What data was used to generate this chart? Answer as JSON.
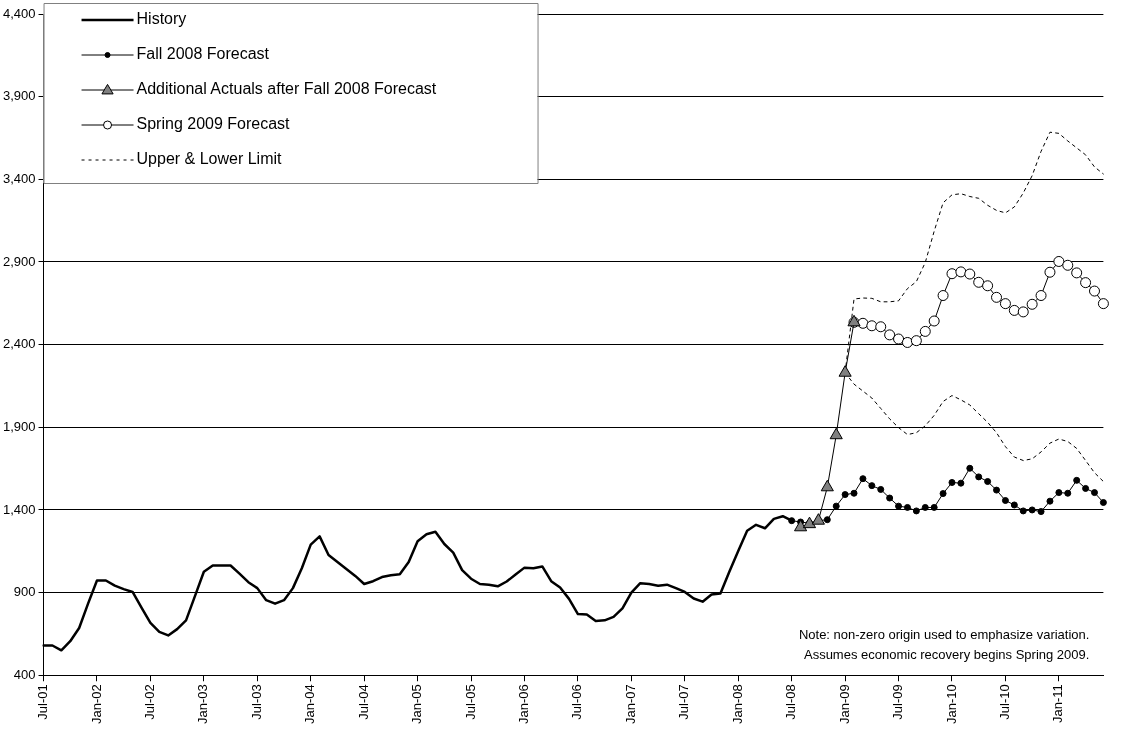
{
  "chart_data": {
    "type": "line",
    "categories": [
      "Jul-01",
      null,
      null,
      null,
      null,
      null,
      "Jan-02",
      null,
      null,
      null,
      null,
      null,
      "Jul-02",
      null,
      null,
      null,
      null,
      null,
      "Jan-03",
      null,
      null,
      null,
      null,
      null,
      "Jul-03",
      null,
      null,
      null,
      null,
      null,
      "Jan-04",
      null,
      null,
      null,
      null,
      null,
      "Jul-04",
      null,
      null,
      null,
      null,
      null,
      "Jan-05",
      null,
      null,
      null,
      null,
      null,
      "Jul-05",
      null,
      null,
      null,
      null,
      null,
      "Jan-06",
      null,
      null,
      null,
      null,
      null,
      "Jul-06",
      null,
      null,
      null,
      null,
      null,
      "Jan-07",
      null,
      null,
      null,
      null,
      null,
      "Jul-07",
      null,
      null,
      null,
      null,
      null,
      "Jan-08",
      null,
      null,
      null,
      null,
      null,
      "Jul-08",
      null,
      null,
      null,
      null,
      null,
      "Jan-09",
      null,
      null,
      null,
      null,
      null,
      "Jul-09",
      null,
      null,
      null,
      null,
      null,
      "Jan-10",
      null,
      null,
      null,
      null,
      null,
      "Jul-10",
      null,
      null,
      null,
      null,
      null,
      "Jan-11",
      null,
      null,
      null,
      null,
      null
    ],
    "series": [
      {
        "name": "History",
        "color": "#000000",
        "marker": "none",
        "line_style": "solid",
        "values": [
          580,
          580,
          551,
          606,
          686,
          833,
          973,
          973,
          942,
          921,
          904,
          809,
          717,
          662,
          641,
          679,
          732,
          879,
          1026,
          1064,
          1064,
          1064,
          1015,
          963,
          927,
          854,
          833,
          854,
          927,
          1047,
          1190,
          1240,
          1127,
          1085,
          1043,
          1001,
          952,
          969,
          994,
          1005,
          1011,
          1085,
          1211,
          1253,
          1268,
          1194,
          1142,
          1036,
          984,
          952,
          948,
          938,
          967,
          1009,
          1051,
          1047,
          1058,
          969,
          931,
          862,
          770,
          767,
          728,
          732,
          753,
          805,
          900,
          957,
          952,
          942,
          948,
          927,
          904,
          864,
          845,
          889,
          894,
          1026,
          1152,
          1274,
          1310,
          1289,
          1346,
          1362,
          1335,
          null,
          null,
          null,
          null,
          null,
          null,
          null,
          null,
          null,
          null,
          null,
          null,
          null,
          null,
          null,
          null,
          null,
          null,
          null,
          null,
          null,
          null,
          null,
          null,
          null,
          null,
          null,
          null,
          null,
          null,
          null,
          null,
          null,
          null,
          null
        ]
      },
      {
        "name": "Fall 2008 Forecast",
        "color": "#000000",
        "marker": "circle",
        "line_style": "solid",
        "values": [
          null,
          null,
          null,
          null,
          null,
          null,
          null,
          null,
          null,
          null,
          null,
          null,
          null,
          null,
          null,
          null,
          null,
          null,
          null,
          null,
          null,
          null,
          null,
          null,
          null,
          null,
          null,
          null,
          null,
          null,
          null,
          null,
          null,
          null,
          null,
          null,
          null,
          null,
          null,
          null,
          null,
          null,
          null,
          null,
          null,
          null,
          null,
          null,
          null,
          null,
          null,
          null,
          null,
          null,
          null,
          null,
          null,
          null,
          null,
          null,
          null,
          null,
          null,
          null,
          null,
          null,
          null,
          null,
          null,
          null,
          null,
          null,
          null,
          null,
          null,
          null,
          null,
          null,
          null,
          null,
          null,
          null,
          null,
          null,
          1335,
          1327,
          1320,
          1335,
          1341,
          1423,
          1493,
          1501,
          1589,
          1547,
          1524,
          1472,
          1423,
          1415,
          1394,
          1415,
          1415,
          1499,
          1566,
          1562,
          1652,
          1600,
          1572,
          1520,
          1457,
          1430,
          1394,
          1400,
          1390,
          1453,
          1505,
          1501,
          1579,
          1530,
          1505,
          1445
        ]
      },
      {
        "name": "Additional Actuals after Fall 2008 Forecast",
        "color": "#808080",
        "marker": "triangle",
        "line_style": "solid",
        "values": [
          null,
          null,
          null,
          null,
          null,
          null,
          null,
          null,
          null,
          null,
          null,
          null,
          null,
          null,
          null,
          null,
          null,
          null,
          null,
          null,
          null,
          null,
          null,
          null,
          null,
          null,
          null,
          null,
          null,
          null,
          null,
          null,
          null,
          null,
          null,
          null,
          null,
          null,
          null,
          null,
          null,
          null,
          null,
          null,
          null,
          null,
          null,
          null,
          null,
          null,
          null,
          null,
          null,
          null,
          null,
          null,
          null,
          null,
          null,
          null,
          null,
          null,
          null,
          null,
          null,
          null,
          null,
          null,
          null,
          null,
          null,
          null,
          null,
          null,
          null,
          null,
          null,
          null,
          null,
          null,
          null,
          null,
          null,
          null,
          null,
          1295,
          1314,
          1335,
          1537,
          1852,
          2230,
          2535,
          null,
          null,
          null,
          null,
          null,
          null,
          null,
          null,
          null,
          null,
          null,
          null,
          null,
          null,
          null,
          null,
          null,
          null,
          null,
          null,
          null,
          null,
          null,
          null,
          null,
          null,
          null,
          null
        ]
      },
      {
        "name": "Spring 2009 Forecast",
        "color": "#000000",
        "marker": "circle_open",
        "line_style": "solid",
        "values": [
          null,
          null,
          null,
          null,
          null,
          null,
          null,
          null,
          null,
          null,
          null,
          null,
          null,
          null,
          null,
          null,
          null,
          null,
          null,
          null,
          null,
          null,
          null,
          null,
          null,
          null,
          null,
          null,
          null,
          null,
          null,
          null,
          null,
          null,
          null,
          null,
          null,
          null,
          null,
          null,
          null,
          null,
          null,
          null,
          null,
          null,
          null,
          null,
          null,
          null,
          null,
          null,
          null,
          null,
          null,
          null,
          null,
          null,
          null,
          null,
          null,
          null,
          null,
          null,
          null,
          null,
          null,
          null,
          null,
          null,
          null,
          null,
          null,
          null,
          null,
          null,
          null,
          null,
          null,
          null,
          null,
          null,
          null,
          null,
          null,
          null,
          null,
          null,
          null,
          null,
          null,
          2535,
          2529,
          2514,
          2508,
          2459,
          2434,
          2413,
          2424,
          2480,
          2543,
          2697,
          2829,
          2840,
          2827,
          2777,
          2756,
          2686,
          2648,
          2607,
          2598,
          2644,
          2697,
          2838,
          2903,
          2880,
          2834,
          2775,
          2724,
          2648
        ]
      },
      {
        "name": "Upper & Lower Limit",
        "color": "#000000",
        "marker": "none",
        "line_style": "dashed",
        "values": [
          null,
          null,
          null,
          null,
          null,
          null,
          null,
          null,
          null,
          null,
          null,
          null,
          null,
          null,
          null,
          null,
          null,
          null,
          null,
          null,
          null,
          null,
          null,
          null,
          null,
          null,
          null,
          null,
          null,
          null,
          null,
          null,
          null,
          null,
          null,
          null,
          null,
          null,
          null,
          null,
          null,
          null,
          null,
          null,
          null,
          null,
          null,
          null,
          null,
          null,
          null,
          null,
          null,
          null,
          null,
          null,
          null,
          null,
          null,
          null,
          null,
          null,
          null,
          null,
          null,
          null,
          null,
          null,
          null,
          null,
          null,
          null,
          null,
          null,
          null,
          null,
          null,
          null,
          null,
          null,
          null,
          null,
          null,
          null,
          null,
          null,
          null,
          null,
          null,
          null,
          2230,
          2676,
          2682,
          2680,
          2659,
          2659,
          2665,
          2739,
          2781,
          2897,
          3086,
          3258,
          3306,
          3313,
          3296,
          3285,
          3243,
          3212,
          3197,
          3233,
          3317,
          3422,
          3569,
          3685,
          3678,
          3632,
          3590,
          3548,
          3475,
          3432
        ]
      },
      {
        "color": "#000000",
        "marker": "none",
        "line_style": "dashed",
        "values": [
          null,
          null,
          null,
          null,
          null,
          null,
          null,
          null,
          null,
          null,
          null,
          null,
          null,
          null,
          null,
          null,
          null,
          null,
          null,
          null,
          null,
          null,
          null,
          null,
          null,
          null,
          null,
          null,
          null,
          null,
          null,
          null,
          null,
          null,
          null,
          null,
          null,
          null,
          null,
          null,
          null,
          null,
          null,
          null,
          null,
          null,
          null,
          null,
          null,
          null,
          null,
          null,
          null,
          null,
          null,
          null,
          null,
          null,
          null,
          null,
          null,
          null,
          null,
          null,
          null,
          null,
          null,
          null,
          null,
          null,
          null,
          null,
          null,
          null,
          null,
          null,
          null,
          null,
          null,
          null,
          null,
          null,
          null,
          null,
          null,
          null,
          null,
          null,
          null,
          null,
          2230,
          2161,
          2119,
          2077,
          2014,
          1951,
          1898,
          1856,
          1867,
          1909,
          1972,
          2056,
          2092,
          2066,
          2035,
          1982,
          1930,
          1867,
          1783,
          1720,
          1699,
          1709,
          1751,
          1804,
          1829,
          1814,
          1772,
          1699,
          1625,
          1572
        ]
      }
    ],
    "ylim": [
      400,
      4400
    ],
    "yticks": [
      {
        "value": 400,
        "label": "400"
      },
      {
        "value": 900,
        "label": "900"
      },
      {
        "value": 1400,
        "label": "1,400"
      },
      {
        "value": 1900,
        "label": "1,900"
      },
      {
        "value": 2400,
        "label": "2,400"
      },
      {
        "value": 2900,
        "label": "2,900"
      },
      {
        "value": 3400,
        "label": "3,400"
      },
      {
        "value": 3900,
        "label": "3,900"
      },
      {
        "value": 4400,
        "label": "4,400"
      }
    ],
    "grid": "y",
    "legend": "top left",
    "annotations": [
      "Note: non-zero origin used to emphasize variation.",
      "Assumes economic recovery begins Spring 2009."
    ]
  }
}
